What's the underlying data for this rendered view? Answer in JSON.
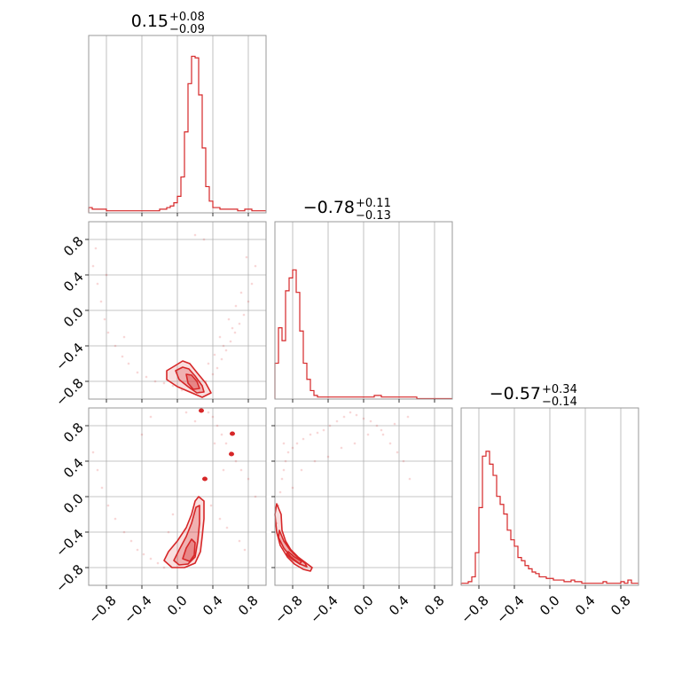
{
  "chart_data": {
    "type": "corner",
    "style": {
      "color": "#d62728",
      "grid": true,
      "frame_color": "#999999",
      "grid_color": "#b0b0b0"
    },
    "range": [
      -1.0,
      1.0
    ],
    "tick_values": [
      -0.8,
      -0.4,
      0.0,
      0.4,
      0.8
    ],
    "tick_labels": [
      "−0.8",
      "−0.4",
      "0.0",
      "0.4",
      "0.8"
    ],
    "titles": [
      {
        "value": "0.15",
        "plus": "+0.08",
        "minus": "−0.09"
      },
      {
        "value": "−0.78",
        "plus": "+0.11",
        "minus": "−0.13"
      },
      {
        "value": "−0.57",
        "plus": "+0.34",
        "minus": "−0.14"
      }
    ],
    "histograms": [
      {
        "parameter": 0,
        "bin_edges": [
          -1.0,
          0.04
        ],
        "counts": [
          0.03,
          0.02,
          0.02,
          0.02,
          0.02,
          0.01,
          0.01,
          0.01,
          0.01,
          0.01,
          0.01,
          0.01,
          0.01,
          0.01,
          0.01,
          0.01,
          0.01,
          0.01,
          0.01,
          0.01,
          0.02,
          0.02,
          0.03,
          0.04,
          0.06,
          0.1,
          0.22,
          0.5,
          0.8,
          0.97,
          0.96,
          0.73,
          0.4,
          0.16,
          0.07,
          0.03,
          0.03,
          0.02,
          0.02,
          0.02,
          0.02,
          0.02,
          0.01,
          0.01,
          0.02,
          0.02,
          0.01,
          0.01,
          0.01,
          0.01
        ],
        "comment": "normalized heights, 50 bins from -1 to 1"
      },
      {
        "parameter": 1,
        "bin_edges": [
          -1.0,
          0.04
        ],
        "counts": [
          0.22,
          0.44,
          0.36,
          0.67,
          0.75,
          0.8,
          0.66,
          0.42,
          0.22,
          0.12,
          0.05,
          0.02,
          0.01,
          0.01,
          0.01,
          0.01,
          0.01,
          0.01,
          0.01,
          0.01,
          0.01,
          0.01,
          0.01,
          0.01,
          0.01,
          0.01,
          0.01,
          0.01,
          0.02,
          0.02,
          0.01,
          0.01,
          0.01,
          0.01,
          0.01,
          0.01,
          0.01,
          0.01,
          0.01,
          0.01,
          0.0,
          0.0,
          0.0,
          0.0,
          0.0,
          0.0,
          0.0,
          0.0,
          0.0,
          0.0
        ],
        "comment": "normalized heights, 50 bins from -1 to 1"
      },
      {
        "parameter": 2,
        "bin_edges": [
          -1.0,
          0.04
        ],
        "counts": [
          0.01,
          0.01,
          0.02,
          0.05,
          0.2,
          0.48,
          0.8,
          0.83,
          0.75,
          0.68,
          0.55,
          0.5,
          0.44,
          0.34,
          0.28,
          0.24,
          0.17,
          0.15,
          0.12,
          0.1,
          0.08,
          0.07,
          0.05,
          0.05,
          0.04,
          0.04,
          0.03,
          0.03,
          0.03,
          0.02,
          0.02,
          0.03,
          0.02,
          0.02,
          0.01,
          0.01,
          0.01,
          0.01,
          0.01,
          0.01,
          0.02,
          0.01,
          0.01,
          0.01,
          0.01,
          0.02,
          0.01,
          0.03,
          0.01,
          0.01
        ],
        "comment": "normalized heights, 50 bins from -1 to 1"
      }
    ],
    "joint_panels": [
      {
        "x_parameter": 0,
        "y_parameter": 1,
        "contours": [
          {
            "level": "outer",
            "fill": 0.15,
            "points": [
              [
                -0.12,
                -0.68
              ],
              [
                -0.02,
                -0.62
              ],
              [
                0.06,
                -0.57
              ],
              [
                0.14,
                -0.6
              ],
              [
                0.22,
                -0.7
              ],
              [
                0.32,
                -0.82
              ],
              [
                0.38,
                -0.93
              ],
              [
                0.28,
                -0.98
              ],
              [
                0.14,
                -0.92
              ],
              [
                0.0,
                -0.86
              ],
              [
                -0.12,
                -0.78
              ]
            ]
          },
          {
            "level": "middle",
            "fill": 0.25,
            "points": [
              [
                -0.02,
                -0.68
              ],
              [
                0.06,
                -0.64
              ],
              [
                0.13,
                -0.66
              ],
              [
                0.2,
                -0.74
              ],
              [
                0.28,
                -0.85
              ],
              [
                0.3,
                -0.92
              ],
              [
                0.22,
                -0.93
              ],
              [
                0.12,
                -0.86
              ],
              [
                0.02,
                -0.78
              ]
            ]
          },
          {
            "level": "inner",
            "fill": 0.3,
            "points": [
              [
                0.1,
                -0.72
              ],
              [
                0.16,
                -0.73
              ],
              [
                0.22,
                -0.8
              ],
              [
                0.25,
                -0.88
              ],
              [
                0.18,
                -0.89
              ],
              [
                0.12,
                -0.82
              ]
            ]
          }
        ],
        "scatter_x": [
          -0.95,
          -0.9,
          -0.86,
          -0.82,
          -0.78,
          -0.7,
          -0.62,
          -0.55,
          -0.45,
          -0.35,
          -0.25,
          -0.15,
          -0.05,
          0.05,
          0.15,
          0.25,
          0.32,
          0.4,
          0.45,
          0.5,
          0.55,
          0.6,
          0.65,
          0.7,
          0.75,
          0.8,
          0.84,
          0.88,
          -0.92,
          -0.8,
          -0.6,
          0.35,
          0.42,
          0.52,
          0.62,
          0.72,
          0.78,
          0.3,
          0.2,
          0.58,
          0.66,
          0.48
        ],
        "scatter_y": [
          0.5,
          0.3,
          0.1,
          -0.1,
          -0.25,
          -0.4,
          -0.52,
          -0.6,
          -0.7,
          -0.75,
          -0.8,
          -0.82,
          -0.85,
          -0.9,
          -0.88,
          -0.92,
          -0.8,
          -0.72,
          -0.65,
          -0.55,
          -0.45,
          -0.35,
          -0.25,
          -0.15,
          -0.05,
          0.1,
          0.3,
          0.5,
          0.7,
          0.4,
          -0.3,
          -0.6,
          -0.5,
          -0.4,
          -0.2,
          0.2,
          0.6,
          0.8,
          0.85,
          -0.1,
          0.05,
          -0.3
        ]
      },
      {
        "x_parameter": 0,
        "y_parameter": 2,
        "contours": [
          {
            "level": "outer",
            "fill": 0.15,
            "points": [
              [
                -0.15,
                -0.72
              ],
              [
                -0.1,
                -0.62
              ],
              [
                0.0,
                -0.5
              ],
              [
                0.1,
                -0.35
              ],
              [
                0.16,
                -0.2
              ],
              [
                0.2,
                -0.05
              ],
              [
                0.24,
                0.0
              ],
              [
                0.3,
                -0.05
              ],
              [
                0.3,
                -0.25
              ],
              [
                0.28,
                -0.45
              ],
              [
                0.26,
                -0.62
              ],
              [
                0.2,
                -0.75
              ],
              [
                0.08,
                -0.8
              ],
              [
                -0.06,
                -0.8
              ]
            ]
          },
          {
            "level": "middle",
            "fill": 0.25,
            "points": [
              [
                -0.04,
                -0.72
              ],
              [
                0.02,
                -0.6
              ],
              [
                0.1,
                -0.45
              ],
              [
                0.16,
                -0.3
              ],
              [
                0.21,
                -0.12
              ],
              [
                0.25,
                -0.1
              ],
              [
                0.25,
                -0.3
              ],
              [
                0.23,
                -0.5
              ],
              [
                0.2,
                -0.68
              ],
              [
                0.12,
                -0.76
              ],
              [
                0.02,
                -0.77
              ]
            ]
          },
          {
            "level": "inner",
            "fill": 0.3,
            "points": [
              [
                0.06,
                -0.7
              ],
              [
                0.1,
                -0.58
              ],
              [
                0.16,
                -0.48
              ],
              [
                0.2,
                -0.52
              ],
              [
                0.19,
                -0.66
              ],
              [
                0.14,
                -0.73
              ]
            ]
          }
        ],
        "islands": [
          [
            0.27,
            0.97
          ],
          [
            0.62,
            0.71
          ],
          [
            0.61,
            0.48
          ],
          [
            0.31,
            0.2
          ]
        ],
        "scatter_x": [
          -0.95,
          -0.9,
          -0.85,
          -0.78,
          -0.7,
          -0.6,
          -0.52,
          -0.45,
          -0.38,
          -0.3,
          -0.22,
          -0.15,
          -0.4,
          -0.3,
          0.35,
          0.4,
          0.45,
          0.5,
          0.55,
          0.6,
          0.66,
          0.72,
          0.8,
          0.88,
          0.2,
          0.1,
          0.38,
          0.48,
          0.56,
          0.7,
          0.76,
          -0.1,
          -0.05,
          0.42,
          0.52
        ],
        "scatter_y": [
          0.5,
          0.3,
          0.1,
          -0.1,
          -0.25,
          -0.4,
          -0.5,
          -0.6,
          -0.65,
          -0.7,
          -0.75,
          -0.8,
          0.7,
          0.9,
          0.95,
          0.9,
          0.8,
          0.7,
          0.6,
          0.5,
          0.4,
          0.3,
          0.2,
          0.0,
          0.85,
          0.95,
          -0.1,
          -0.25,
          -0.35,
          -0.5,
          -0.6,
          -0.4,
          -0.2,
          0.6,
          0.3
        ]
      },
      {
        "x_parameter": 1,
        "y_parameter": 2,
        "contours": [
          {
            "level": "outer",
            "fill": 0.15,
            "points": [
              [
                -0.98,
                -0.08
              ],
              [
                -0.93,
                -0.2
              ],
              [
                -0.92,
                -0.38
              ],
              [
                -0.88,
                -0.5
              ],
              [
                -0.82,
                -0.6
              ],
              [
                -0.74,
                -0.68
              ],
              [
                -0.66,
                -0.74
              ],
              [
                -0.58,
                -0.8
              ],
              [
                -0.6,
                -0.84
              ],
              [
                -0.68,
                -0.82
              ],
              [
                -0.78,
                -0.76
              ],
              [
                -0.86,
                -0.68
              ],
              [
                -0.94,
                -0.55
              ],
              [
                -0.98,
                -0.4
              ],
              [
                -1.0,
                -0.2
              ]
            ]
          },
          {
            "level": "middle",
            "fill": 0.25,
            "points": [
              [
                -0.95,
                -0.38
              ],
              [
                -0.9,
                -0.5
              ],
              [
                -0.83,
                -0.6
              ],
              [
                -0.75,
                -0.68
              ],
              [
                -0.66,
                -0.75
              ],
              [
                -0.64,
                -0.79
              ],
              [
                -0.72,
                -0.76
              ],
              [
                -0.82,
                -0.68
              ],
              [
                -0.9,
                -0.58
              ],
              [
                -0.96,
                -0.46
              ]
            ]
          },
          {
            "level": "inner",
            "fill": 0.3,
            "points": [
              [
                -0.85,
                -0.62
              ],
              [
                -0.78,
                -0.68
              ],
              [
                -0.7,
                -0.73
              ],
              [
                -0.72,
                -0.76
              ],
              [
                -0.8,
                -0.71
              ],
              [
                -0.87,
                -0.65
              ]
            ]
          }
        ],
        "scatter_x": [
          -0.98,
          -0.96,
          -0.94,
          -0.92,
          -0.9,
          -0.88,
          -0.85,
          -0.8,
          -0.75,
          -0.68,
          -0.6,
          -0.52,
          -0.45,
          -0.38,
          -0.3,
          -0.22,
          -0.15,
          -0.08,
          0.0,
          0.08,
          0.15,
          0.22,
          0.3,
          0.38,
          0.45,
          0.52,
          -0.7,
          -0.55,
          -0.4,
          -0.25,
          -0.1,
          0.05,
          0.2,
          0.35,
          0.5,
          -0.9,
          -0.8
        ],
        "scatter_y": [
          -0.3,
          -0.1,
          0.05,
          0.2,
          0.3,
          0.4,
          0.5,
          0.55,
          0.6,
          0.65,
          0.7,
          0.72,
          0.75,
          0.8,
          0.85,
          0.9,
          0.95,
          0.92,
          0.88,
          0.85,
          0.8,
          0.7,
          0.6,
          0.5,
          0.4,
          0.2,
          0.3,
          0.4,
          0.45,
          0.55,
          0.6,
          0.7,
          0.75,
          0.82,
          0.9,
          0.6,
          0.1
        ]
      }
    ]
  }
}
